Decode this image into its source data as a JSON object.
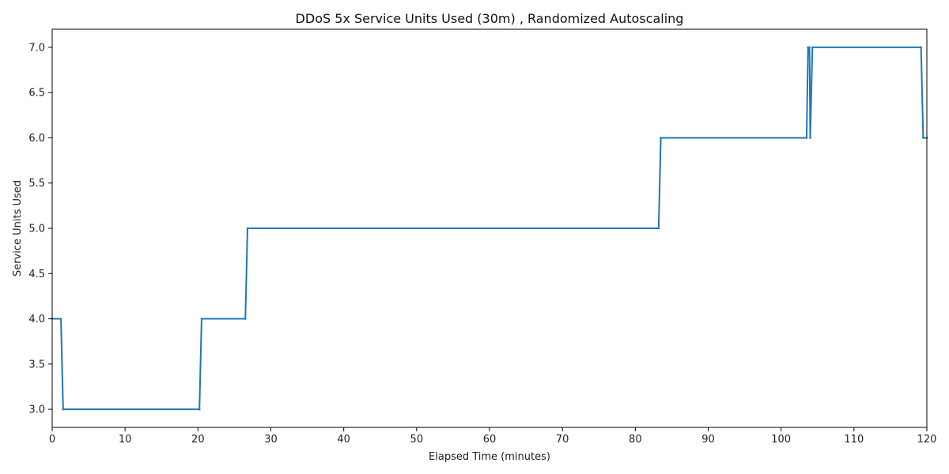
{
  "chart_data": {
    "type": "line",
    "title": "DDoS 5x Service Units Used (30m) , Randomized Autoscaling",
    "xlabel": "Elapsed Time (minutes)",
    "ylabel": "Service Units Used",
    "xlim": [
      0,
      120
    ],
    "ylim": [
      2.8,
      7.2
    ],
    "xticks": [
      0,
      10,
      20,
      30,
      40,
      50,
      60,
      70,
      80,
      90,
      100,
      110,
      120
    ],
    "yticks": [
      3.0,
      3.5,
      4.0,
      4.5,
      5.0,
      5.5,
      6.0,
      6.5,
      7.0
    ],
    "grid": false,
    "line_color": "#1f77b4",
    "series": [
      {
        "x": [
          0,
          1.2,
          1.5,
          20.2,
          20.5,
          26.5,
          26.8,
          83.2,
          83.5,
          103.5,
          103.7,
          103.9,
          104.0,
          104.3,
          119.2,
          119.5,
          120
        ],
        "y": [
          4,
          4,
          3,
          3,
          4,
          4,
          5,
          5,
          6,
          6,
          7,
          7,
          6,
          7,
          7,
          6,
          6
        ]
      }
    ]
  }
}
